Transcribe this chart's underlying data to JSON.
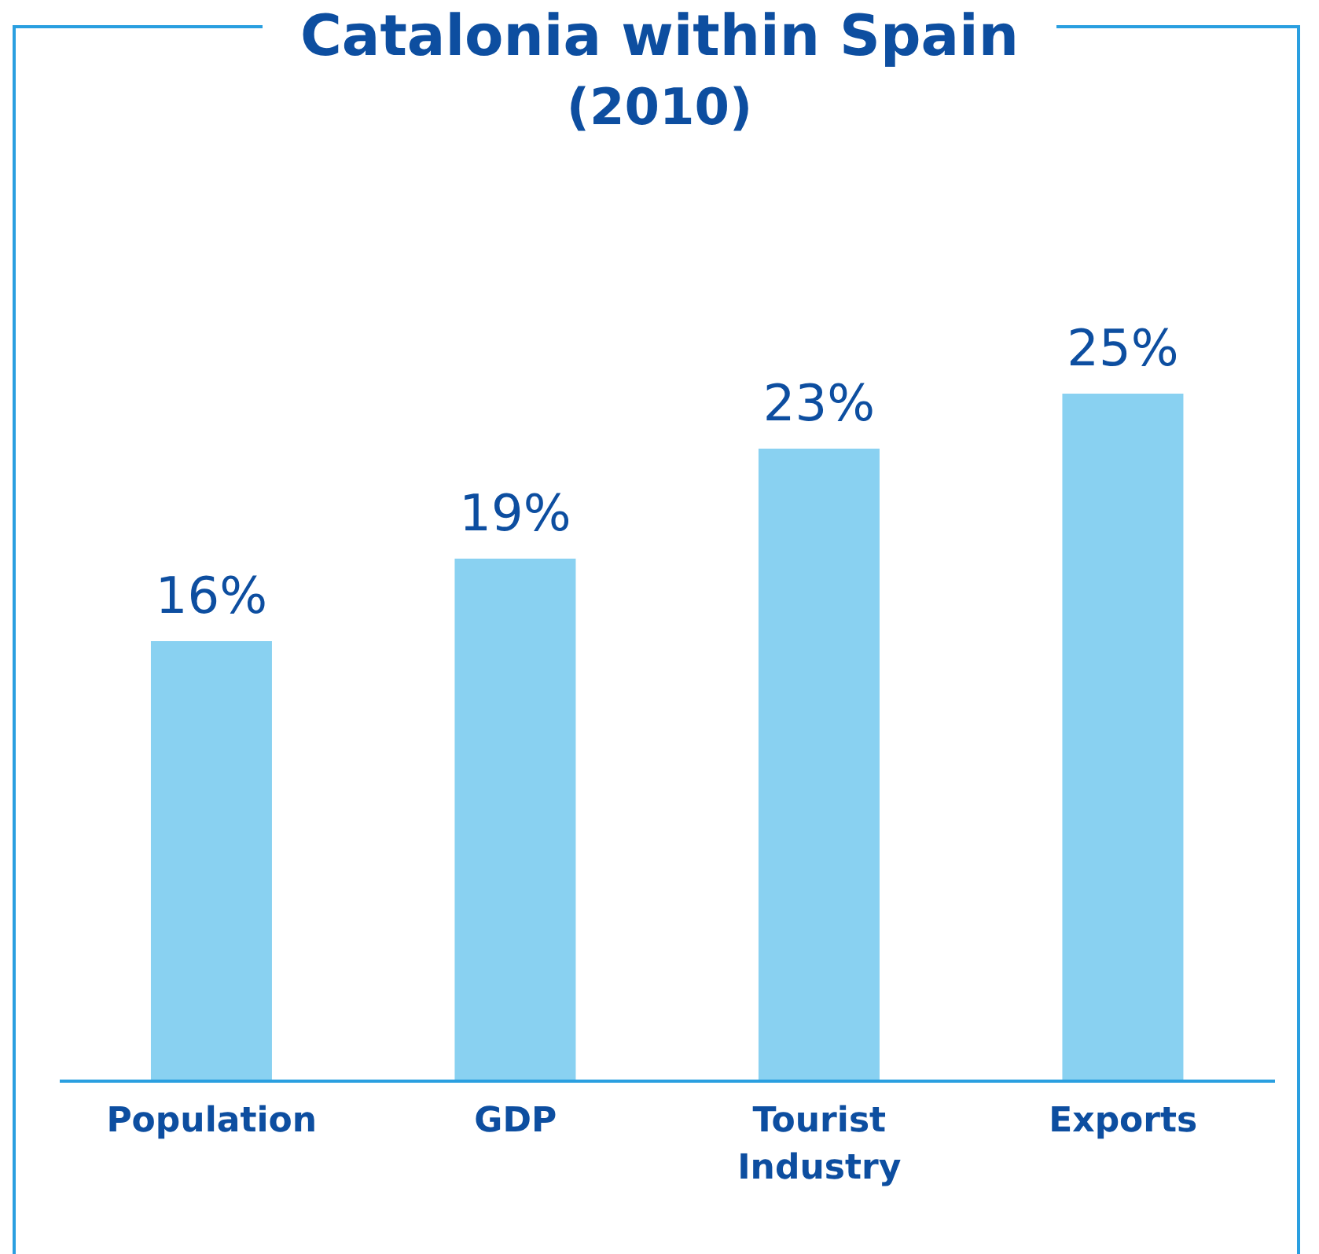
{
  "chart_data": {
    "type": "bar",
    "title": "Catalonia within Spain",
    "subtitle": "(2010)",
    "categories": [
      "Population",
      "GDP",
      "Tourist Industry",
      "Exports"
    ],
    "values": [
      16,
      19,
      23,
      25
    ],
    "value_labels": [
      "16%",
      "19%",
      "23%",
      "25%"
    ],
    "color": "#89d1f1",
    "grid": false,
    "legend": false,
    "tick_labels": "x"
  }
}
